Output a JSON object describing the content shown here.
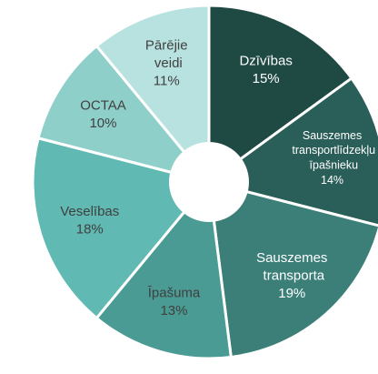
{
  "chart_data": {
    "type": "pie",
    "categories": [
      "Dzīvības",
      "Sauszemes transportlīdzekļu īpašnieku",
      "Sauszemes transporta",
      "Īpašuma",
      "Veselības",
      "OCTAA",
      "Pārējie veidi"
    ],
    "values": [
      15,
      14,
      19,
      13,
      18,
      10,
      11
    ],
    "value_labels": [
      "15%",
      "14%",
      "19%",
      "13%",
      "18%",
      "10%",
      "11%"
    ],
    "colors": [
      "#1f4a44",
      "#2a5e58",
      "#3b7f78",
      "#4a9b94",
      "#60b9b2",
      "#8ecfca",
      "#b8e2df"
    ],
    "donut": true
  }
}
